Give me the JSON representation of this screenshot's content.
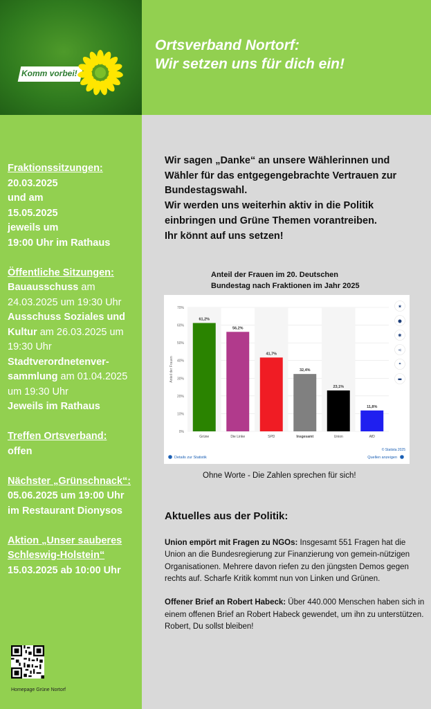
{
  "logo": {
    "text": "Komm vorbei!"
  },
  "header": {
    "line1": "Ortsverband Nortorf:",
    "line2": "Wir setzen uns für dich ein!"
  },
  "sidebar": {
    "fraktion_heading": "Fraktionssitzungen:",
    "fraktion_lines": [
      "20.03.2025",
      "und am",
      "15.05.2025",
      "jeweils um",
      "19:00 Uhr im Rathaus"
    ],
    "oeffentlich_heading": "Öffentliche Sitzungen:",
    "bau_bold": "Bauausschuss",
    "bau_rest": " am 24.03.2025 um 19:30 Uhr",
    "soz_bold": "Ausschuss Soziales und Kultur",
    "soz_rest": " am 26.03.2025 um 19:30 Uhr",
    "svv_bold": "Stadtverordnetenver-sammlung",
    "svv_rest": " am 01.04.2025 um 19:30 Uhr",
    "rathaus": "Jeweils im Rathaus",
    "treffen_heading": "Treffen Ortsverband:",
    "treffen_value": "offen",
    "gruenschnack_heading": "Nächster „Grünschnack“:",
    "gruenschnack_lines": [
      "05.06.2025 um 19:00 Uhr",
      "im Restaurant Dionysos"
    ],
    "aktion_heading": "Aktion „Unser sauberes Schleswig-Holstein“",
    "aktion_value": "15.03.2025 ab 10:00 Uhr",
    "qr_caption": "Homepage Grüne Nortorf"
  },
  "main": {
    "thanks_lines": [
      "Wir sagen „Danke“ an unsere Wählerinnen und Wähler für das entgegengebrachte Vertrauen zur Bundestagswahl.",
      "Wir werden uns weiterhin aktiv in die Politik einbringen und Grüne Themen vorantreiben.",
      "Ihr könnt auf uns setzen!"
    ],
    "chart_title_1": "Anteil der Frauen im 20. Deutschen",
    "chart_title_2": "Bundestag nach Fraktionen im Jahr 2025",
    "chart_caption": "Ohne Worte - Die Zahlen sprechen für sich!",
    "news_heading": "Aktuelles aus der Politik:",
    "news": [
      {
        "title": "Union empört mit Fragen zu NGOs:",
        "text": " Insgesamt 551 Fragen hat die Union an die Bundesregierung zur Finanzierung von gemein-nützigen Organisationen. Mehrere davon riefen zu den jüngsten Demos gegen rechts auf. Scharfe Kritik kommt nun von Linken und Grünen."
      },
      {
        "title": "Offener Brief an Robert Habeck:",
        "text": " Über 440.000 Menschen haben sich in einem offenen Brief an Robert Habeck gewendet, um ihn zu unterstützen. Robert, Du sollst bleiben!"
      }
    ]
  },
  "chart_data": {
    "type": "bar",
    "categories": [
      "Grüne",
      "Die Linke",
      "SPD",
      "Insgesamt",
      "Union",
      "AfD"
    ],
    "values": [
      61.2,
      56.2,
      41.7,
      32.4,
      23.1,
      11.8
    ],
    "value_labels": [
      "61,2%",
      "56,2%",
      "41,7%",
      "32,4%",
      "23,1%",
      "11,8%"
    ],
    "colors": [
      "#2a8300",
      "#b13a8c",
      "#f01c24",
      "#808080",
      "#000000",
      "#1f1ff0"
    ],
    "ylabel": "Anteil der Frauen",
    "yticks": [
      "0%",
      "10%",
      "20%",
      "30%",
      "40%",
      "50%",
      "60%",
      "70%"
    ],
    "ylim": [
      0,
      70
    ],
    "source": "© Statista 2025",
    "link_details": "Details zur Statistik",
    "link_quellen": "Quellen anzeigen",
    "grid": true,
    "legend": "none"
  }
}
